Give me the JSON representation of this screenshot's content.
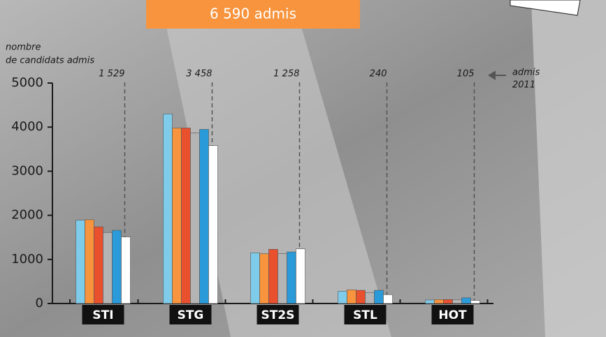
{
  "chart_data": {
    "type": "bar",
    "title": "6 590 admis",
    "y_label": [
      "nombre",
      "de candidats admis"
    ],
    "categories": [
      "STI",
      "STG",
      "ST2S",
      "STL",
      "HOT"
    ],
    "series": [
      {
        "color": "#7ecbea",
        "values": [
          1890,
          4300,
          1150,
          280,
          80
        ]
      },
      {
        "color": "#f7943d",
        "values": [
          1900,
          3980,
          1130,
          310,
          90
        ]
      },
      {
        "color": "#e8502e",
        "values": [
          1740,
          3980,
          1230,
          300,
          90
        ]
      },
      {
        "color": "#b4b4b4",
        "values": [
          1610,
          3870,
          1130,
          250,
          90
        ]
      },
      {
        "color": "#2a9ad8",
        "values": [
          1660,
          3950,
          1170,
          300,
          130
        ]
      },
      {
        "color": "#ffffff",
        "values": [
          1510,
          3580,
          1240,
          200,
          70
        ]
      }
    ],
    "admis_2011": [
      "1 529",
      "3 458",
      "1 258",
      "240",
      "105"
    ],
    "admis_2011_label": [
      "admis",
      "2011"
    ],
    "ylim": [
      0,
      5000
    ],
    "yticks": [
      0,
      1000,
      2000,
      3000,
      4000,
      5000
    ]
  }
}
